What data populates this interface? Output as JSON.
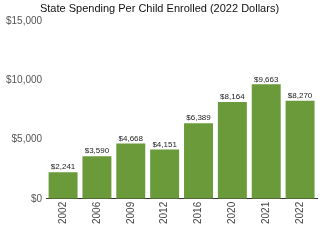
{
  "chart_data": {
    "type": "bar",
    "title": "State Spending Per Child Enrolled (2022 Dollars)",
    "categories": [
      "2002",
      "2006",
      "2009",
      "2012",
      "2016",
      "2020",
      "2021",
      "2022"
    ],
    "values": [
      2241,
      3590,
      4668,
      4151,
      6389,
      8164,
      9663,
      8270
    ],
    "value_labels": [
      "$2,241",
      "$3,590",
      "$4,668",
      "$4,151",
      "$6,389",
      "$8,164",
      "$9,663",
      "$8,270"
    ],
    "data_labels": true,
    "color": "#6a9a3a",
    "ylim": [
      0,
      15000
    ],
    "yticks": [
      {
        "value": 0,
        "label": "$0"
      },
      {
        "value": 5000,
        "label": "$5,000"
      },
      {
        "value": 10000,
        "label": "$10,000"
      },
      {
        "value": 15000,
        "label": "$15,000"
      }
    ],
    "grid": false
  }
}
